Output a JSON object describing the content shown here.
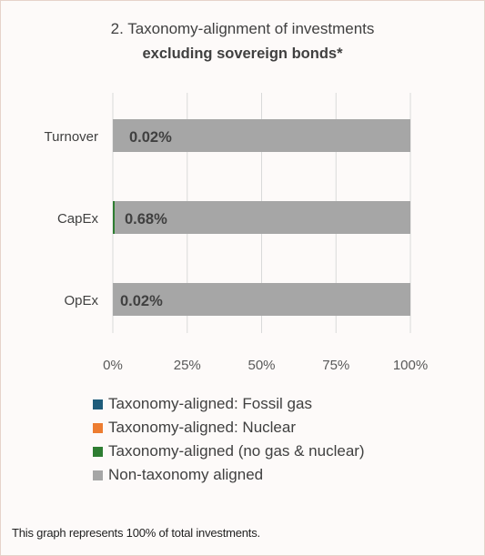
{
  "title_line1": "2. Taxonomy-alignment of investments",
  "title_line2": "excluding sovereign bonds*",
  "footnote": "This graph represents 100% of total investments.",
  "colors": {
    "fossil_gas": "#1f5c7a",
    "nuclear": "#ed7d31",
    "aligned_no_gas_nuclear": "#2e7d32",
    "non_aligned": "#a6a6a6",
    "grid": "#d9d9d9"
  },
  "chart_data": {
    "type": "bar",
    "orientation": "horizontal",
    "stacked": true,
    "title": "2. Taxonomy-alignment of investments excluding sovereign bonds*",
    "categories": [
      "Turnover",
      "CapEx",
      "OpEx"
    ],
    "series": [
      {
        "name": "Taxonomy-aligned: Fossil gas",
        "color": "#1f5c7a",
        "values": [
          0,
          0,
          0
        ]
      },
      {
        "name": "Taxonomy-aligned: Nuclear",
        "color": "#ed7d31",
        "values": [
          0,
          0,
          0
        ]
      },
      {
        "name": "Taxonomy-aligned (no gas & nuclear)",
        "color": "#2e7d32",
        "values": [
          0.02,
          0.68,
          0.02
        ]
      },
      {
        "name": "Non-taxonomy aligned",
        "color": "#a6a6a6",
        "values": [
          99.98,
          99.32,
          99.98
        ]
      }
    ],
    "data_labels": [
      "0.02%",
      "0.68%",
      "0.02%"
    ],
    "x_ticks": [
      "0%",
      "25%",
      "50%",
      "75%",
      "100%"
    ],
    "xlim": [
      0,
      100
    ],
    "grid": true,
    "legend_position": "bottom"
  }
}
